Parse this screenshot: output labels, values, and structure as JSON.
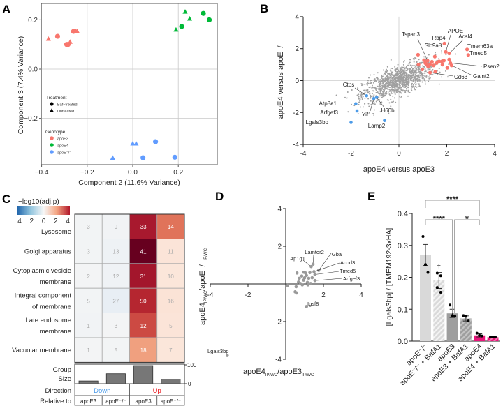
{
  "panel_labels": [
    "A",
    "B",
    "C",
    "D",
    "E"
  ],
  "chart_data": [
    {
      "panel": "A",
      "type": "scatter",
      "xlabel": "Component 2 (11.6% Variance)",
      "ylabel": "Component 3 (7.4% Variance)",
      "xlim": [
        -0.4,
        0.35
      ],
      "ylim": [
        -0.37,
        0.25
      ],
      "xticks": [
        -0.4,
        -0.2,
        0.0,
        0.2
      ],
      "xtick_labels": [
        "−0.4",
        "−0.2",
        "0.0",
        "0.2"
      ],
      "yticks": [
        0.2,
        0.0,
        -0.2
      ],
      "ytick_labels": [
        "0.2",
        "0.0",
        "−0.2"
      ],
      "grid": true,
      "legend": {
        "treatment_title": "Treatment",
        "treatment": [
          "Baf−treated",
          "Untreated"
        ],
        "genotype_title": "Genotype",
        "genotype": [
          "apoE3",
          "apoE4",
          "apoE⁻/⁻"
        ]
      },
      "colors": {
        "apoE3": "#F8766D",
        "apoE4": "#00BA38",
        "apoE-/-": "#619CFF"
      },
      "points": [
        {
          "g": "apoE3",
          "t": "Baf",
          "x": -0.33,
          "y": 0.133
        },
        {
          "g": "apoE3",
          "t": "Baf",
          "x": -0.29,
          "y": 0.1
        },
        {
          "g": "apoE3",
          "t": "Baf",
          "x": -0.284,
          "y": 0.1
        },
        {
          "g": "apoE3",
          "t": "Baf",
          "x": -0.26,
          "y": 0.153
        },
        {
          "g": "apoE3",
          "t": "Un",
          "x": -0.37,
          "y": 0.123
        },
        {
          "g": "apoE3",
          "t": "Un",
          "x": -0.275,
          "y": 0.111
        },
        {
          "g": "apoE3",
          "t": "Un",
          "x": -0.25,
          "y": 0.154
        },
        {
          "g": "apoE3",
          "t": "Un",
          "x": -0.244,
          "y": 0.154
        },
        {
          "g": "apoE4",
          "t": "Baf",
          "x": 0.215,
          "y": 0.173
        },
        {
          "g": "apoE4",
          "t": "Baf",
          "x": 0.31,
          "y": 0.226
        },
        {
          "g": "apoE4",
          "t": "Baf",
          "x": 0.336,
          "y": 0.2
        },
        {
          "g": "apoE4",
          "t": "Un",
          "x": 0.19,
          "y": 0.16
        },
        {
          "g": "apoE4",
          "t": "Un",
          "x": 0.23,
          "y": 0.233
        },
        {
          "g": "apoE4",
          "t": "Un",
          "x": 0.25,
          "y": 0.205
        },
        {
          "g": "apoE-/-",
          "t": "Baf",
          "x": 0.045,
          "y": -0.36
        },
        {
          "g": "apoE-/-",
          "t": "Baf",
          "x": 0.1,
          "y": -0.295
        },
        {
          "g": "apoE-/-",
          "t": "Baf",
          "x": 0.185,
          "y": -0.358
        },
        {
          "g": "apoE-/-",
          "t": "Un",
          "x": -0.088,
          "y": -0.36
        },
        {
          "g": "apoE-/-",
          "t": "Un",
          "x": 0.0,
          "y": -0.302
        },
        {
          "g": "apoE-/-",
          "t": "Un",
          "x": 0.015,
          "y": -0.302
        }
      ]
    },
    {
      "panel": "B",
      "type": "scatter",
      "xlabel": "apoE4 versus apoE3",
      "ylabel": "apoE4 versus apoE⁻/⁻",
      "xlim": [
        -4,
        4
      ],
      "ylim": [
        -4,
        4
      ],
      "xticks": [
        -4,
        -2,
        0,
        2,
        4
      ],
      "yticks": [
        4,
        2,
        0,
        -2,
        -4
      ],
      "colors": {
        "up": "#F8766D",
        "down": "#4C9BE8",
        "background": "#A0A0A0"
      },
      "n_background_points": 1100,
      "labeled_up": [
        {
          "name": "Tspan3",
          "x": 1.2,
          "y": 1.24
        },
        {
          "name": "Rbp4",
          "x": 1.9,
          "y": 2.32
        },
        {
          "name": "Slc9a8",
          "x": 1.8,
          "y": 1.2
        },
        {
          "name": "APOE",
          "x": 1.96,
          "y": 1.8
        },
        {
          "name": "Acsl4",
          "x": 2.1,
          "y": 1.7
        },
        {
          "name": "Tmem63a",
          "x": 2.85,
          "y": 1.95
        },
        {
          "name": "Tmed5",
          "x": 2.9,
          "y": 1.6
        },
        {
          "name": "Psen2",
          "x": 2.15,
          "y": 1.1
        },
        {
          "name": "Galnt2",
          "x": 2.2,
          "y": 0.95
        },
        {
          "name": "Cd63",
          "x": 1.3,
          "y": 0.5
        }
      ],
      "other_up": [
        [
          0.8,
          1.62
        ],
        [
          0.82,
          1.0
        ],
        [
          0.98,
          0.7
        ],
        [
          1.05,
          1.28
        ],
        [
          1.15,
          1.0
        ],
        [
          1.3,
          1.0
        ],
        [
          1.38,
          1.18
        ],
        [
          1.45,
          0.95
        ],
        [
          1.5,
          1.5
        ],
        [
          1.58,
          1.1
        ],
        [
          1.82,
          1.0
        ],
        [
          1.88,
          1.25
        ],
        [
          2.02,
          0.8
        ],
        [
          2.1,
          1.32
        ],
        [
          1.22,
          0.88
        ],
        [
          1.52,
          0.55
        ],
        [
          1.68,
          1.2
        ],
        [
          1.1,
          1.1
        ]
      ],
      "labeled_down": [
        {
          "name": "Ctbs",
          "x": -1.35,
          "y": -0.95
        },
        {
          "name": "Atp8a1",
          "x": -1.8,
          "y": -1.45
        },
        {
          "name": "Arfgef3",
          "x": -1.75,
          "y": -1.9
        },
        {
          "name": "Lgals3bp",
          "x": -2.0,
          "y": -2.62
        },
        {
          "name": "Yif1b",
          "x": -1.05,
          "y": -1.12
        },
        {
          "name": "H60b",
          "x": -0.93,
          "y": -1.05
        },
        {
          "name": "Lamp2",
          "x": -0.6,
          "y": -2.5
        }
      ]
    },
    {
      "panel": "C",
      "type": "heatmap",
      "colorbar_title": "−log10(adj.p)",
      "colorbar_ticks": [
        "4",
        "2",
        "0",
        "2",
        "4"
      ],
      "rows": [
        "Lysosome",
        "Golgi apparatus",
        "Cytoplasmic vesicle membrane",
        "Integral component of membrane",
        "Late endosome membrane",
        "Vacuolar membrane"
      ],
      "row_label_lines": [
        [
          "Lysosome"
        ],
        [
          "Golgi apparatus"
        ],
        [
          "Cytoplasmic vesicle",
          "membrane"
        ],
        [
          "Integral component",
          "of membrane"
        ],
        [
          "Late endosome",
          "membrane"
        ],
        [
          "Vacuolar membrane"
        ]
      ],
      "columns": [
        {
          "direction": "Down",
          "relative_to": "apoE3"
        },
        {
          "direction": "Down",
          "relative_to": "apoE⁻/⁻"
        },
        {
          "direction": "Up",
          "relative_to": "apoE3"
        },
        {
          "direction": "Up",
          "relative_to": "apoE⁻/⁻"
        }
      ],
      "counts": [
        [
          3,
          9,
          33,
          14
        ],
        [
          3,
          13,
          41,
          11
        ],
        [
          2,
          12,
          31,
          10
        ],
        [
          5,
          27,
          50,
          16
        ],
        [
          1,
          3,
          12,
          5
        ],
        [
          1,
          5,
          18,
          7
        ]
      ],
      "fills": [
        [
          "#f2f4f5",
          "#f1f3f5",
          "#a8192e",
          "#e0735a"
        ],
        [
          "#f2f4f5",
          "#eef2f5",
          "#67001f",
          "#fbe4d8"
        ],
        [
          "#f3f4f5",
          "#eff2f5",
          "#a3162c",
          "#fbe6da"
        ],
        [
          "#f2f4f5",
          "#e8eef4",
          "#b52630",
          "#fbe3d6"
        ],
        [
          "#f1f3f5",
          "#f3f4f5",
          "#cc4a43",
          "#fbe4d8"
        ],
        [
          "#f3f4f5",
          "#f2f4f5",
          "#f0a07f",
          "#fbe6da"
        ]
      ],
      "group_size_label": [
        "Group",
        "Size"
      ],
      "group_sizes": [
        15,
        55,
        100,
        25
      ],
      "group_size_ticks": [
        "100",
        "0"
      ],
      "direction_label": "Direction",
      "direction_groups": [
        "Down",
        "Up"
      ],
      "direction_colors": {
        "Down": "#4C9BE8",
        "Up": "#E8141A"
      },
      "relative_label": "Relative to"
    },
    {
      "panel": "D",
      "type": "scatter",
      "xlabel_main": "apoE4",
      "xlabel_sub1": "IP/WC",
      "xlabel_mid": "/apoE3",
      "xlabel_sub2": "IP/WC",
      "ylabel_main": "apoE4",
      "ylabel_sub1": "IP/WC",
      "ylabel_mid": "/apoE⁻/⁻",
      "ylabel_sub2": "IP/WC",
      "xlim": [
        -4,
        4
      ],
      "ylim": [
        -4,
        4
      ],
      "xticks": [
        -4,
        -2,
        2,
        4
      ],
      "yticks": [
        4,
        2,
        -2,
        -4
      ],
      "labeled": [
        {
          "name": "Ap1g1",
          "x": 1.35,
          "y": 0.92
        },
        {
          "name": "Lamtor2",
          "x": 1.45,
          "y": 1.05
        },
        {
          "name": "Gba",
          "x": 1.75,
          "y": 0.72
        },
        {
          "name": "Acbd3",
          "x": 1.5,
          "y": 0.65
        },
        {
          "name": "Tmed5",
          "x": 1.55,
          "y": 0.5
        },
        {
          "name": "Arfgef3",
          "x": 1.55,
          "y": 0.18
        },
        {
          "name": "Igsf8",
          "x": 1.1,
          "y": -1.2
        },
        {
          "name": "Lgals3bp",
          "x": -3.1,
          "y": -3.8
        }
      ],
      "others": [
        [
          0.6,
          0.58
        ],
        [
          0.72,
          0.3
        ],
        [
          0.85,
          0.42
        ],
        [
          0.95,
          0.2
        ],
        [
          1.1,
          0.45
        ],
        [
          1.15,
          0.08
        ],
        [
          1.22,
          0.3
        ],
        [
          0.55,
          -0.15
        ],
        [
          0.5,
          -0.42
        ],
        [
          0.58,
          -0.48
        ],
        [
          0.88,
          -0.05
        ],
        [
          1.05,
          0.58
        ],
        [
          1.32,
          0.02
        ],
        [
          1.4,
          0.33
        ],
        [
          1.28,
          0.6
        ],
        [
          0.1,
          -0.08
        ],
        [
          1.0,
          0.32
        ],
        [
          0.78,
          0.02
        ],
        [
          0.95,
          0.62
        ],
        [
          1.18,
          -0.05
        ],
        [
          0.68,
          0.1
        ]
      ]
    },
    {
      "panel": "E",
      "type": "bar",
      "ylabel": "[Lgals3bp] / [TMEM192-3xHA]",
      "ylim": [
        0,
        0.4
      ],
      "yticks": [
        0.0,
        0.1,
        0.2,
        0.3,
        0.4
      ],
      "ytick_labels": [
        "0.0",
        "0.1",
        "0.2",
        "0.3",
        "0.4"
      ],
      "categories": [
        "apoE⁻/⁻",
        "apoE⁻/⁻ + BafA1",
        "apoE3",
        "apoE3 + BafA1",
        "apoE4",
        "apoE4 + BafA1"
      ],
      "values": [
        0.27,
        0.19,
        0.087,
        0.071,
        0.018,
        0.013
      ],
      "sem": [
        0.033,
        0.025,
        0.013,
        0.008,
        0.005,
        0.002
      ],
      "replicates": [
        [
          0.328,
          0.24,
          0.215
        ],
        [
          0.213,
          0.205,
          0.168,
          0.153
        ],
        [
          0.113,
          0.08,
          0.078
        ],
        [
          0.08,
          0.078,
          0.063
        ],
        [
          0.025,
          0.018,
          0.016
        ],
        [
          0.013,
          0.013,
          0.013
        ]
      ],
      "fills": [
        "#D9D9D9",
        "#D9D9D9",
        "#9E9E9E",
        "#9E9E9E",
        "#E8157A",
        "#E8157A"
      ],
      "hatched": [
        false,
        true,
        false,
        true,
        false,
        true
      ],
      "dagger": "†",
      "dagger_bar": 1,
      "significance": [
        {
          "from": 0,
          "to": 4,
          "label": "****"
        },
        {
          "from": 0,
          "to": 2,
          "label": "****"
        },
        {
          "from": 2,
          "to": 4,
          "label": "*"
        }
      ]
    }
  ]
}
